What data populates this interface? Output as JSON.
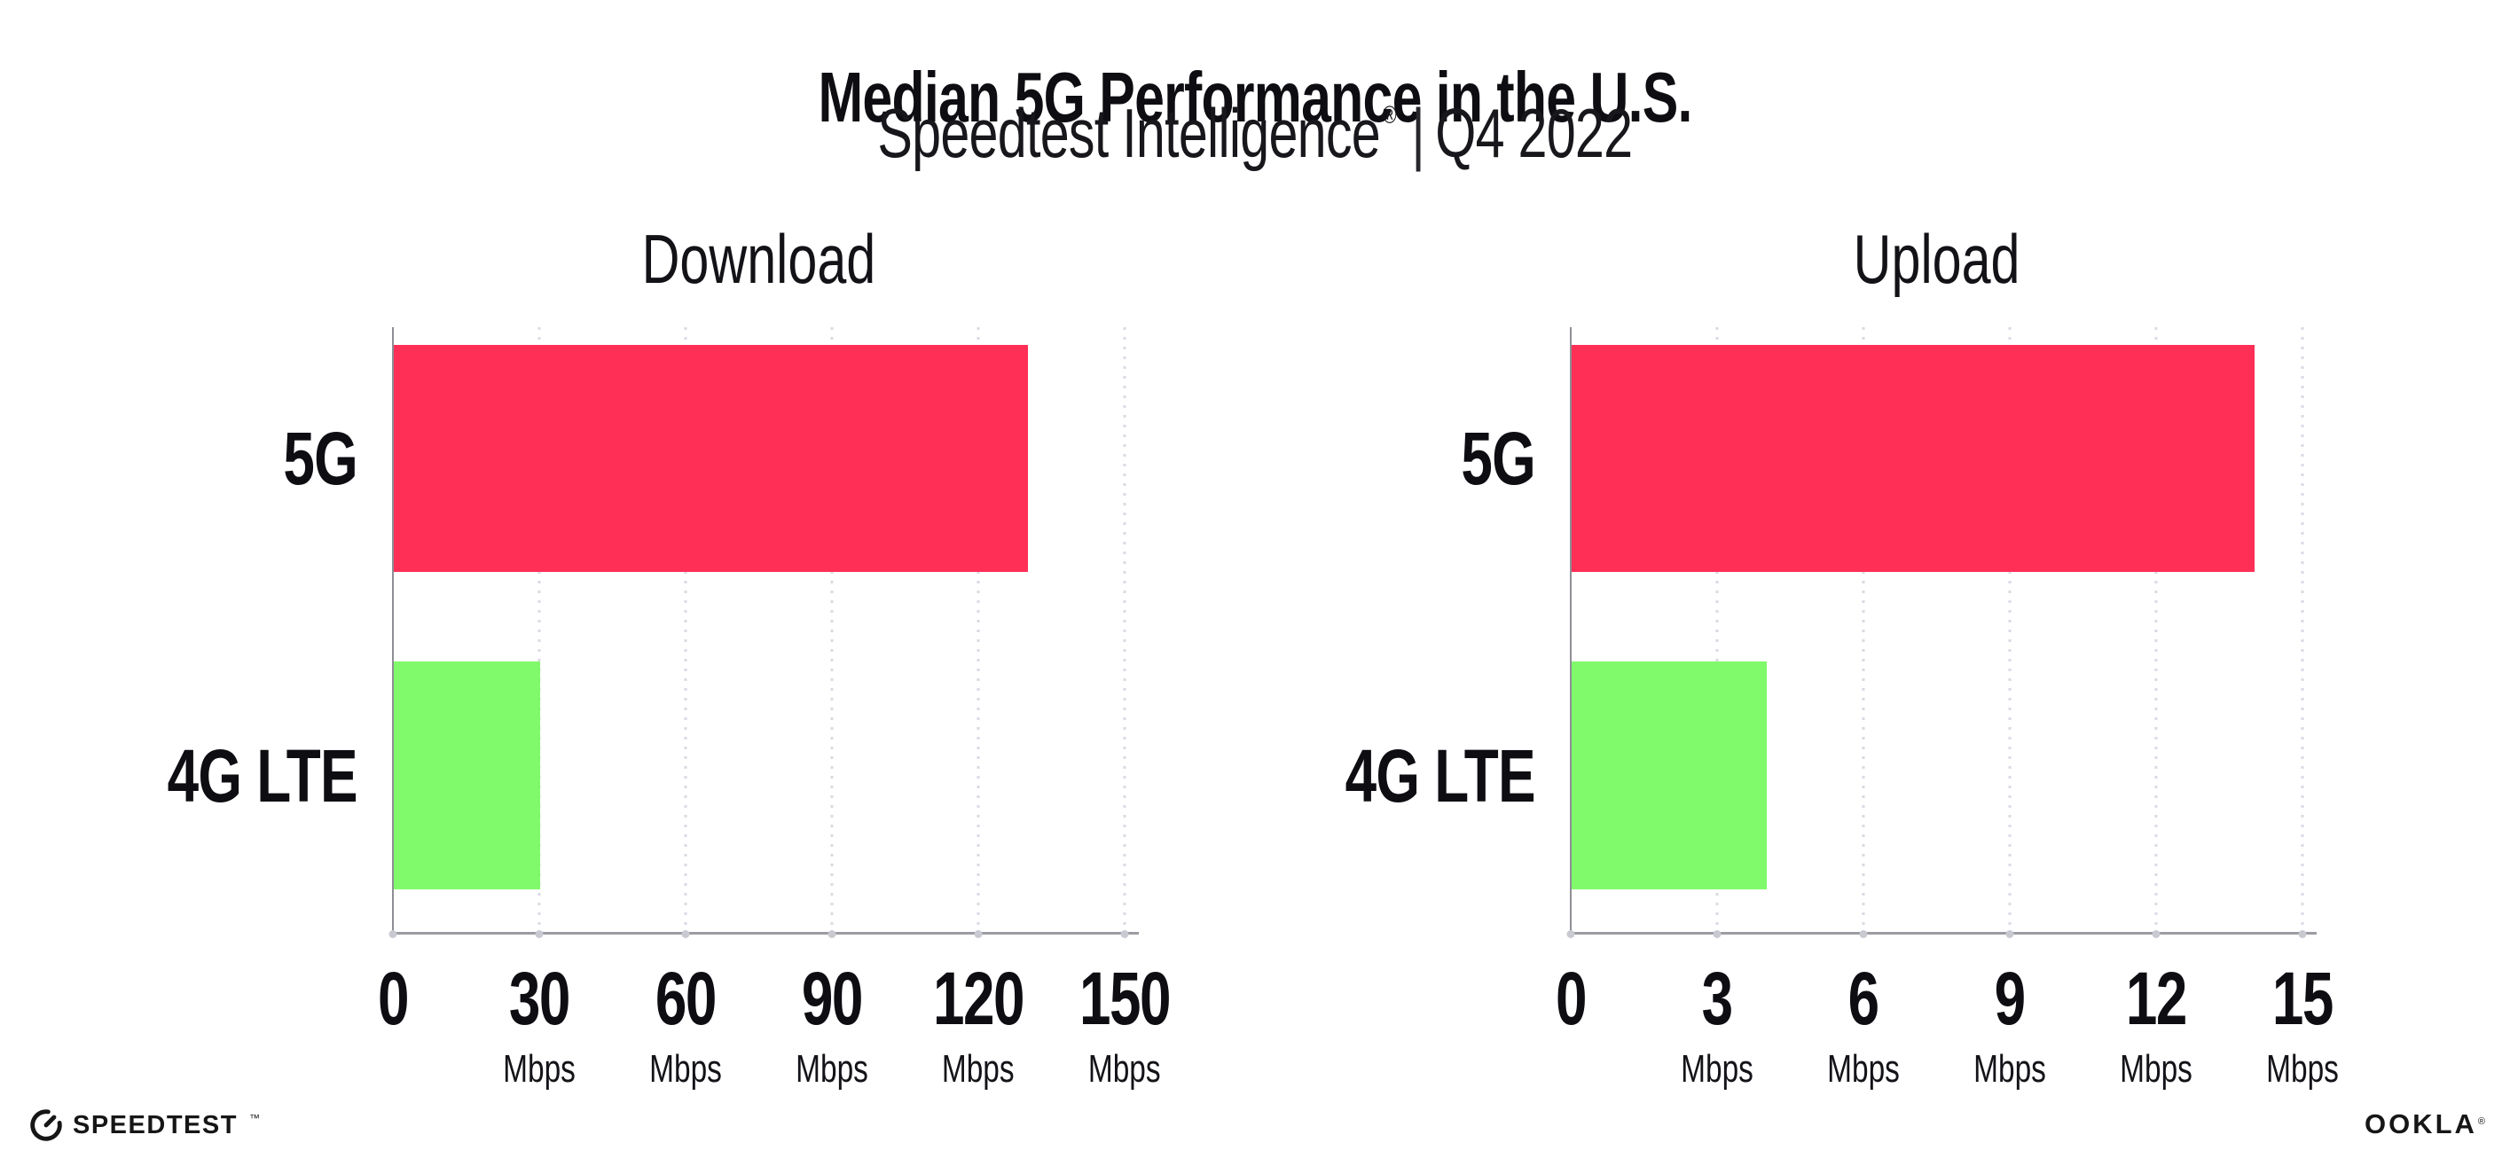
{
  "page": {
    "background_color": "#FFFFFF",
    "text_color": "#0D0D12"
  },
  "header": {
    "title": "Median 5G Performance in the U.S.",
    "subtitle_brand": "Speedtest Intelligence",
    "subtitle_registered_mark": "®",
    "subtitle_separator": "|",
    "subtitle_period": "Q4 2022"
  },
  "chart_data": [
    {
      "type": "bar",
      "orientation": "horizontal",
      "title": "Download",
      "unit": "Mbps",
      "categories": [
        "5G",
        "4G LTE"
      ],
      "values": [
        130,
        30
      ],
      "xlim": [
        0,
        150
      ],
      "xticks": [
        0,
        30,
        60,
        90,
        120,
        150
      ],
      "bar_colors": [
        "#FF2F56",
        "#80FA6A"
      ],
      "grid": "dotted vertical gridlines at each tick",
      "legend_position": "none"
    },
    {
      "type": "bar",
      "orientation": "horizontal",
      "title": "Upload",
      "unit": "Mbps",
      "categories": [
        "5G",
        "4G LTE"
      ],
      "values": [
        14,
        4
      ],
      "xlim": [
        0,
        15
      ],
      "xticks": [
        0,
        3,
        6,
        9,
        12,
        15
      ],
      "bar_colors": [
        "#FF2F56",
        "#80FA6A"
      ],
      "grid": "dotted vertical gridlines at each tick",
      "legend_position": "none"
    }
  ],
  "colors": {
    "bar_5g": "#FF2F56",
    "bar_4g_lte": "#80FA6A",
    "axis_line": "#97979F",
    "gridline_dots": "#DADAE4",
    "tick_dots": "#C9C9D2"
  },
  "footer": {
    "speedtest_wordmark": "SPEEDTEST",
    "speedtest_trademark": "™",
    "ookla_wordmark": "OOKLA",
    "ookla_registered_mark": "®"
  }
}
